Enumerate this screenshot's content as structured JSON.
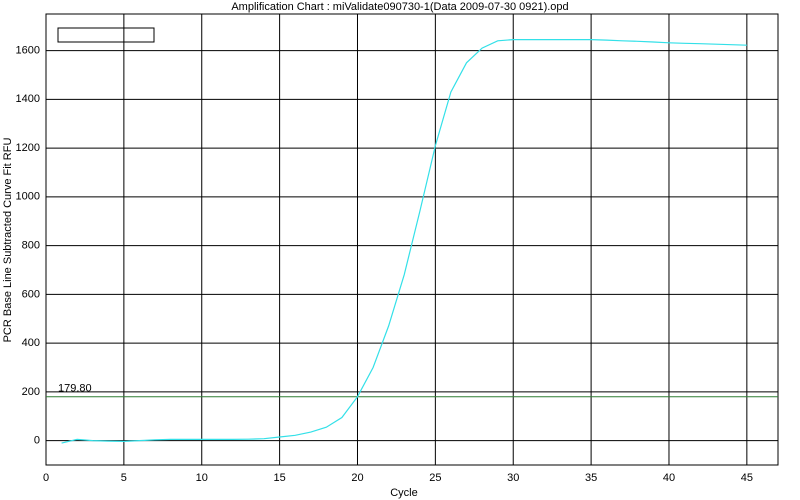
{
  "chart_data": {
    "type": "line",
    "title": "Amplification Chart : miValidate090730-1(Data 2009-07-30 0921).opd",
    "x_label": "Cycle",
    "y_label": "PCR Base Line Subtracted Curve Fit RFU",
    "x": [
      1,
      2,
      3,
      4,
      5,
      6,
      7,
      8,
      9,
      10,
      11,
      12,
      13,
      14,
      15,
      16,
      17,
      18,
      19,
      20,
      21,
      22,
      23,
      24,
      25,
      26,
      27,
      28,
      29,
      30,
      31,
      32,
      33,
      34,
      35,
      36,
      37,
      38,
      39,
      40,
      41,
      42,
      43,
      44,
      45
    ],
    "series": [
      {
        "color": "#33e0e8",
        "values": [
          -10,
          5,
          0,
          -2,
          -3,
          0,
          3,
          5,
          5,
          5,
          5,
          5,
          6,
          8,
          15,
          22,
          35,
          55,
          95,
          180,
          300,
          470,
          680,
          940,
          1210,
          1430,
          1550,
          1610,
          1640,
          1645,
          1645,
          1645,
          1645,
          1645,
          1645,
          1643,
          1640,
          1638,
          1635,
          1632,
          1630,
          1628,
          1626,
          1624,
          1622
        ]
      }
    ],
    "threshold": {
      "value": 179.8,
      "label": "179.80",
      "color": "#2e7d32"
    },
    "xlim": [
      0,
      47
    ],
    "xticks": [
      0,
      5,
      10,
      15,
      20,
      25,
      30,
      35,
      40,
      45
    ],
    "ylim": [
      -100,
      1750
    ],
    "yticks": [
      0,
      200,
      400,
      600,
      800,
      1000,
      1200,
      1400,
      1600
    ],
    "grid": true
  }
}
